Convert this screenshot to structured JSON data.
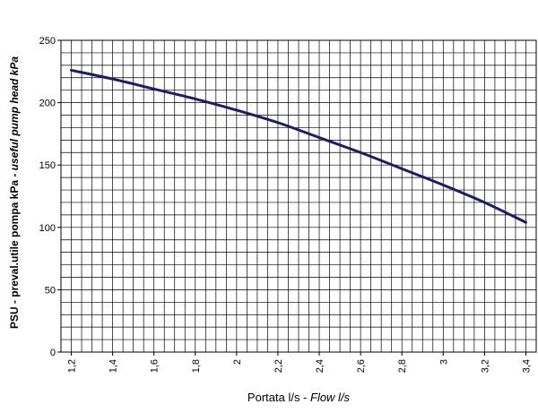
{
  "chart_data": {
    "type": "line",
    "xlabel_main": "Portata l/s - ",
    "xlabel_italic": "Flow l/s",
    "ylabel_main": "PSU - preval.utile pompa kPa - ",
    "ylabel_italic": "useful pump head kPa",
    "xlim": [
      1.15,
      3.45
    ],
    "ylim": [
      0,
      250
    ],
    "x_ticks": [
      1.2,
      1.4,
      1.6,
      1.8,
      2.0,
      2.2,
      2.4,
      2.6,
      2.8,
      3.0,
      3.2,
      3.4
    ],
    "x_tick_labels": [
      "1,2",
      "1,4",
      "1,6",
      "1,8",
      "2",
      "2,2",
      "2,4",
      "2,6",
      "2,8",
      "3",
      "3,2",
      "3,4"
    ],
    "y_ticks": [
      0,
      50,
      100,
      150,
      200,
      250
    ],
    "y_tick_labels": [
      "0",
      "50",
      "100",
      "150",
      "200",
      "250"
    ],
    "grid": true,
    "series": [
      {
        "color": "#1f1a6b",
        "x": [
          1.2,
          1.4,
          1.6,
          1.8,
          2.0,
          2.2,
          2.4,
          2.6,
          2.8,
          3.0,
          3.2,
          3.4
        ],
        "y": [
          226,
          219,
          211,
          203,
          194,
          184,
          172,
          160,
          147,
          134,
          120,
          104
        ]
      }
    ]
  }
}
